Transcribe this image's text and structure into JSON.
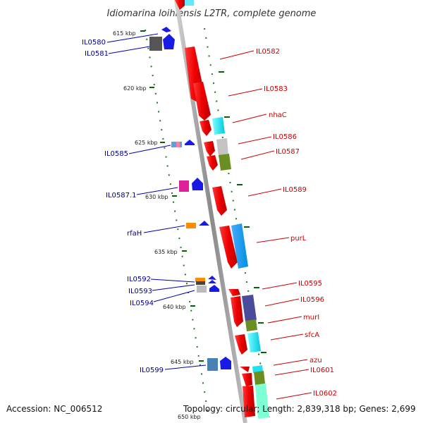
{
  "title": "Idiomarina loihiensis L2TR, complete genome",
  "ticks": [
    "615 kbp",
    "620 kbp",
    "625 kbp",
    "630 kbp",
    "635 kbp",
    "640 kbp",
    "645 kbp",
    "650 kbp"
  ],
  "left_genes": [
    "IL0580",
    "IL0581",
    "IL0585",
    "IL0587.1",
    "rfaH",
    "IL0592",
    "IL0593",
    "IL0594",
    "IL0599"
  ],
  "right_genes": [
    "IL0582",
    "IL0583",
    "nhaC",
    "IL0586",
    "IL0587",
    "IL0589",
    "purL",
    "IL0595",
    "IL0596",
    "murI",
    "sfcA",
    "azu",
    "IL0601",
    "IL0602"
  ],
  "footer": {
    "accession": "Accession: NC_006512",
    "summary": "Topology: circular; Length: 2,839,318 bp; Genes: 2,699"
  },
  "colors": {
    "backbone": "#9a9a9a",
    "forward_gene": "#ff0000",
    "left_label": "#00008b",
    "right_label": "#cc0000",
    "tick": "#006400"
  }
}
